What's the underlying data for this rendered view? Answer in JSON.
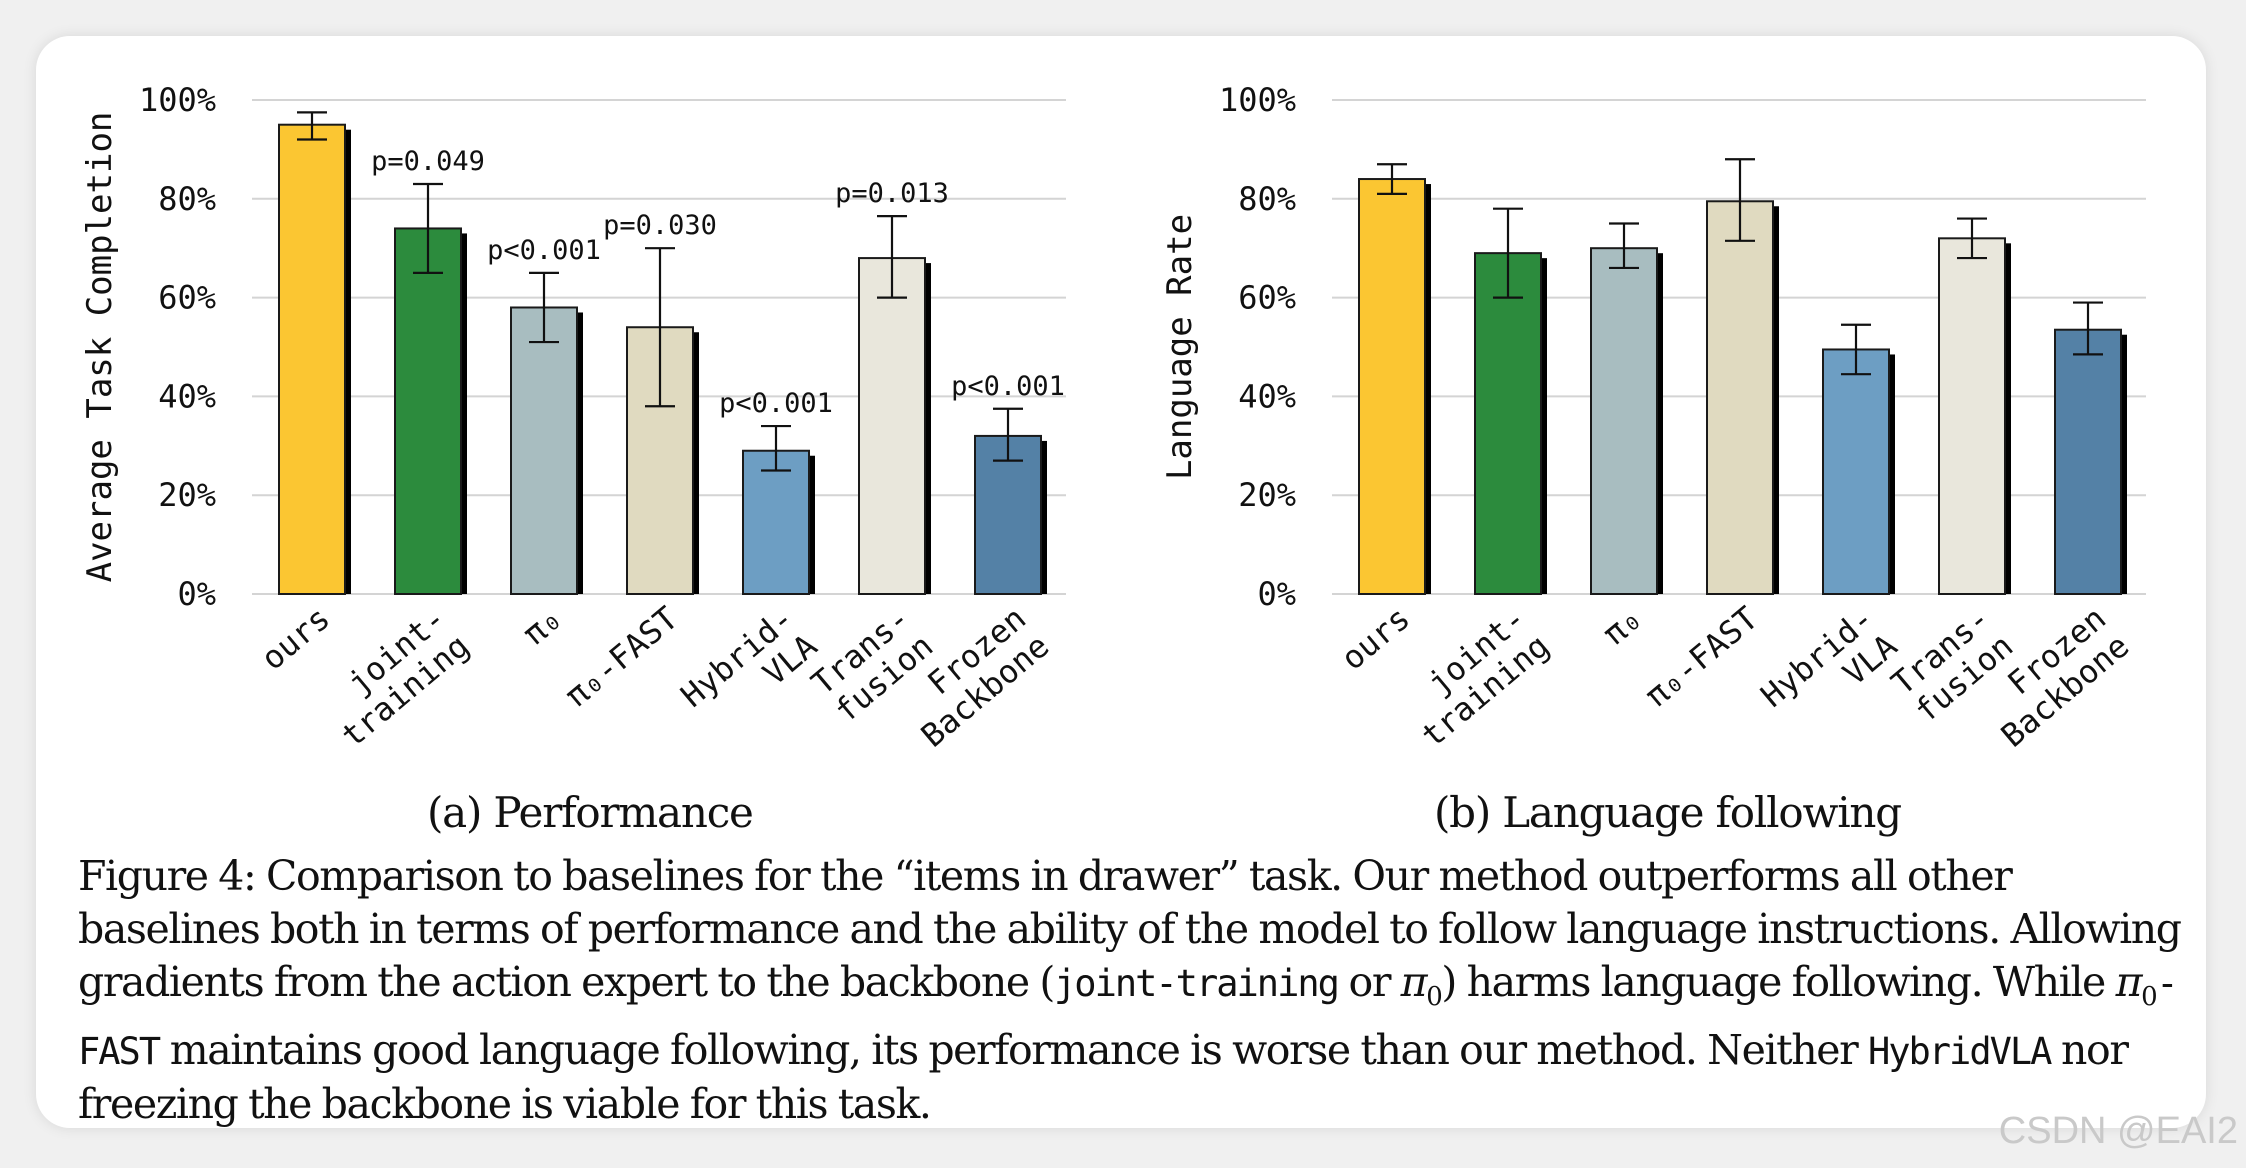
{
  "chart_data": [
    {
      "type": "bar",
      "subtitle": "(a) Performance",
      "ylabel": "Average Task Completion",
      "ylim": [
        0,
        100
      ],
      "yticks": [
        "0%",
        "20%",
        "40%",
        "60%",
        "80%",
        "100%"
      ],
      "grid": true,
      "categories": [
        "ours",
        "joint-training",
        "π0",
        "π0-FAST",
        "HybridVLA",
        "Transfusion",
        "Frozen Backbone"
      ],
      "category_labels": [
        [
          "ours"
        ],
        [
          "joint-",
          "training"
        ],
        [
          "π₀"
        ],
        [
          "π₀-FAST"
        ],
        [
          "Hybrid-",
          "VLA"
        ],
        [
          "Trans-",
          "fusion"
        ],
        [
          "Frozen",
          "Backbone"
        ]
      ],
      "values": [
        95,
        74,
        58,
        54,
        29,
        68,
        32
      ],
      "errors_low": [
        92,
        65,
        51,
        38,
        25,
        60,
        27
      ],
      "errors_high": [
        97.5,
        83,
        65,
        70,
        34,
        76.5,
        37.5
      ],
      "annotations": [
        "",
        "p=0.049",
        "p<0.001",
        "p=0.030",
        "p<0.001",
        "p=0.013",
        "p<0.001"
      ]
    },
    {
      "type": "bar",
      "subtitle": "(b) Language following",
      "ylabel": "Language Rate",
      "ylim": [
        0,
        100
      ],
      "yticks": [
        "0%",
        "20%",
        "40%",
        "60%",
        "80%",
        "100%"
      ],
      "grid": true,
      "categories": [
        "ours",
        "joint-training",
        "π0",
        "π0-FAST",
        "HybridVLA",
        "Transfusion",
        "Frozen Backbone"
      ],
      "category_labels": [
        [
          "ours"
        ],
        [
          "joint-",
          "training"
        ],
        [
          "π₀"
        ],
        [
          "π₀-FAST"
        ],
        [
          "Hybrid-",
          "VLA"
        ],
        [
          "Trans-",
          "fusion"
        ],
        [
          "Frozen",
          "Backbone"
        ]
      ],
      "values": [
        84,
        69,
        70,
        79.5,
        49.5,
        72,
        53.5
      ],
      "errors_low": [
        81,
        60,
        66,
        71.5,
        44.5,
        68,
        48.5
      ],
      "errors_high": [
        87,
        78,
        75,
        88,
        54.5,
        76,
        59
      ],
      "annotations": [
        "",
        "",
        "",
        "",
        "",
        "",
        ""
      ]
    }
  ],
  "colors": [
    "#fbc632",
    "#2c8b3d",
    "#a8bdc0",
    "#e0dac0",
    "#6d9ec3",
    "#e9e7dc",
    "#5481a6"
  ],
  "caption": {
    "label": "Figure 4:",
    "t1": " Comparison to baselines for the “items in drawer” task. Our method outperforms all other baselines both in terms of performance and the ability of the model to follow language instructions. Allowing gradients from the action expert to the backbone (",
    "code1": "joint-training",
    "t2": " or ",
    "pi": "π",
    "sub0": "0",
    "t3": ") harms language following. While ",
    "pi2": "π",
    "sub1": "0",
    "code2": "-FAST",
    "t4": " maintains good language following, its performance is worse than our method. Neither ",
    "code3": "HybridVLA",
    "t5": " nor freezing the backbone is viable for this task."
  },
  "watermark": "CSDN @EAI2"
}
